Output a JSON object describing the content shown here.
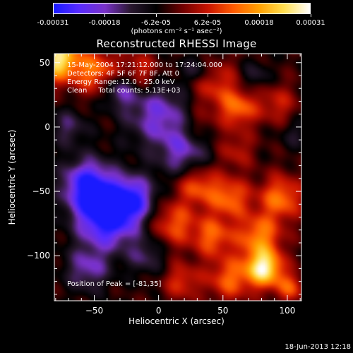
{
  "colorbar": {
    "tick_labels": [
      "-0.00031",
      "-0.00018",
      "-6.2e-05",
      "6.2e-05",
      "0.00018",
      "0.00031"
    ],
    "units_label": "(photons cm⁻² s⁻¹ asec⁻²)",
    "range": [
      -0.00031,
      0.00031
    ]
  },
  "info": {
    "line1": "15-May-2004 17:21:12.000 to 17:24:04.000",
    "line2": "Detectors: 4F 5F 6F 7F 8F, Att 0",
    "line3": "Energy Range: 12.0 - 25.0 keV",
    "line4": "Clean     Total counts: 5.13E+03"
  },
  "peak_label": "Position of Peak = [-81,35]",
  "footer_date": "18-Jun-2013 12:18",
  "chart_data": {
    "type": "heatmap",
    "title": "Reconstructed RHESSI Image",
    "xlabel": "Heliocentric X (arcsec)",
    "ylabel": "Heliocentric Y (arcsec)",
    "xlim": [
      -81,
      111
    ],
    "ylim": [
      -135,
      57
    ],
    "x_ticks": [
      -50,
      0,
      50,
      100
    ],
    "y_ticks": [
      50,
      0,
      -50,
      -100
    ],
    "x_tick_labels": [
      "−50",
      "0",
      "50",
      "100"
    ],
    "y_tick_labels": [
      "50",
      "0",
      "−50",
      "−100"
    ],
    "colormap": [
      "#1a1aff",
      "#5a2bff",
      "#7a32c8",
      "#2a1830",
      "#000000",
      "#6e0000",
      "#c81400",
      "#ff5a00",
      "#ffa000",
      "#ffdf50",
      "#ffffff"
    ],
    "blobs": [
      {
        "x": -79,
        "y": 53,
        "sigma": 12,
        "value": 0.00031
      },
      {
        "x": -48,
        "y": 43,
        "sigma": 12,
        "value": 0.00018
      },
      {
        "x": -15,
        "y": 42,
        "sigma": 11,
        "value": 0.00013
      },
      {
        "x": 43,
        "y": 33,
        "sigma": 14,
        "value": 0.00012
      },
      {
        "x": 62,
        "y": 14,
        "sigma": 10,
        "value": 0.00016
      },
      {
        "x": 92,
        "y": 18,
        "sigma": 11,
        "value": 0.0001
      },
      {
        "x": 30,
        "y": 0,
        "sigma": 10,
        "value": 7e-05
      },
      {
        "x": 60,
        "y": -18,
        "sigma": 10,
        "value": 9e-05
      },
      {
        "x": 30,
        "y": -45,
        "sigma": 11,
        "value": 0.00016
      },
      {
        "x": 55,
        "y": -55,
        "sigma": 11,
        "value": 0.00017
      },
      {
        "x": 95,
        "y": -55,
        "sigma": 12,
        "value": 0.00018
      },
      {
        "x": 12,
        "y": -75,
        "sigma": 12,
        "value": 0.00015
      },
      {
        "x": 42,
        "y": -85,
        "sigma": 11,
        "value": 0.00016
      },
      {
        "x": 78,
        "y": -85,
        "sigma": 12,
        "value": 0.00019
      },
      {
        "x": 82,
        "y": -110,
        "sigma": 10,
        "value": 0.00031
      },
      {
        "x": 55,
        "y": -118,
        "sigma": 12,
        "value": 0.00016
      },
      {
        "x": 18,
        "y": -120,
        "sigma": 10,
        "value": 0.00012
      },
      {
        "x": 102,
        "y": -125,
        "sigma": 8,
        "value": 0.00014
      },
      {
        "x": -40,
        "y": -70,
        "sigma": 16,
        "value": -0.0003
      },
      {
        "x": -55,
        "y": -45,
        "sigma": 14,
        "value": -0.00025
      },
      {
        "x": -20,
        "y": -55,
        "sigma": 12,
        "value": -0.0002
      },
      {
        "x": -30,
        "y": 30,
        "sigma": 10,
        "value": -0.00015
      },
      {
        "x": 0,
        "y": 10,
        "sigma": 18,
        "value": -0.00016
      },
      {
        "x": 20,
        "y": -20,
        "sigma": 14,
        "value": -0.00014
      },
      {
        "x": -55,
        "y": -110,
        "sigma": 12,
        "value": -0.00014
      },
      {
        "x": -10,
        "y": -100,
        "sigma": 10,
        "value": -0.0001
      },
      {
        "x": -70,
        "y": 0,
        "sigma": 10,
        "value": -0.0001
      },
      {
        "x": 30,
        "y": 45,
        "sigma": 8,
        "value": -0.0001
      },
      {
        "x": 75,
        "y": 40,
        "sigma": 8,
        "value": -8e-05
      },
      {
        "x": 105,
        "y": -5,
        "sigma": 8,
        "value": -6e-05
      }
    ]
  }
}
